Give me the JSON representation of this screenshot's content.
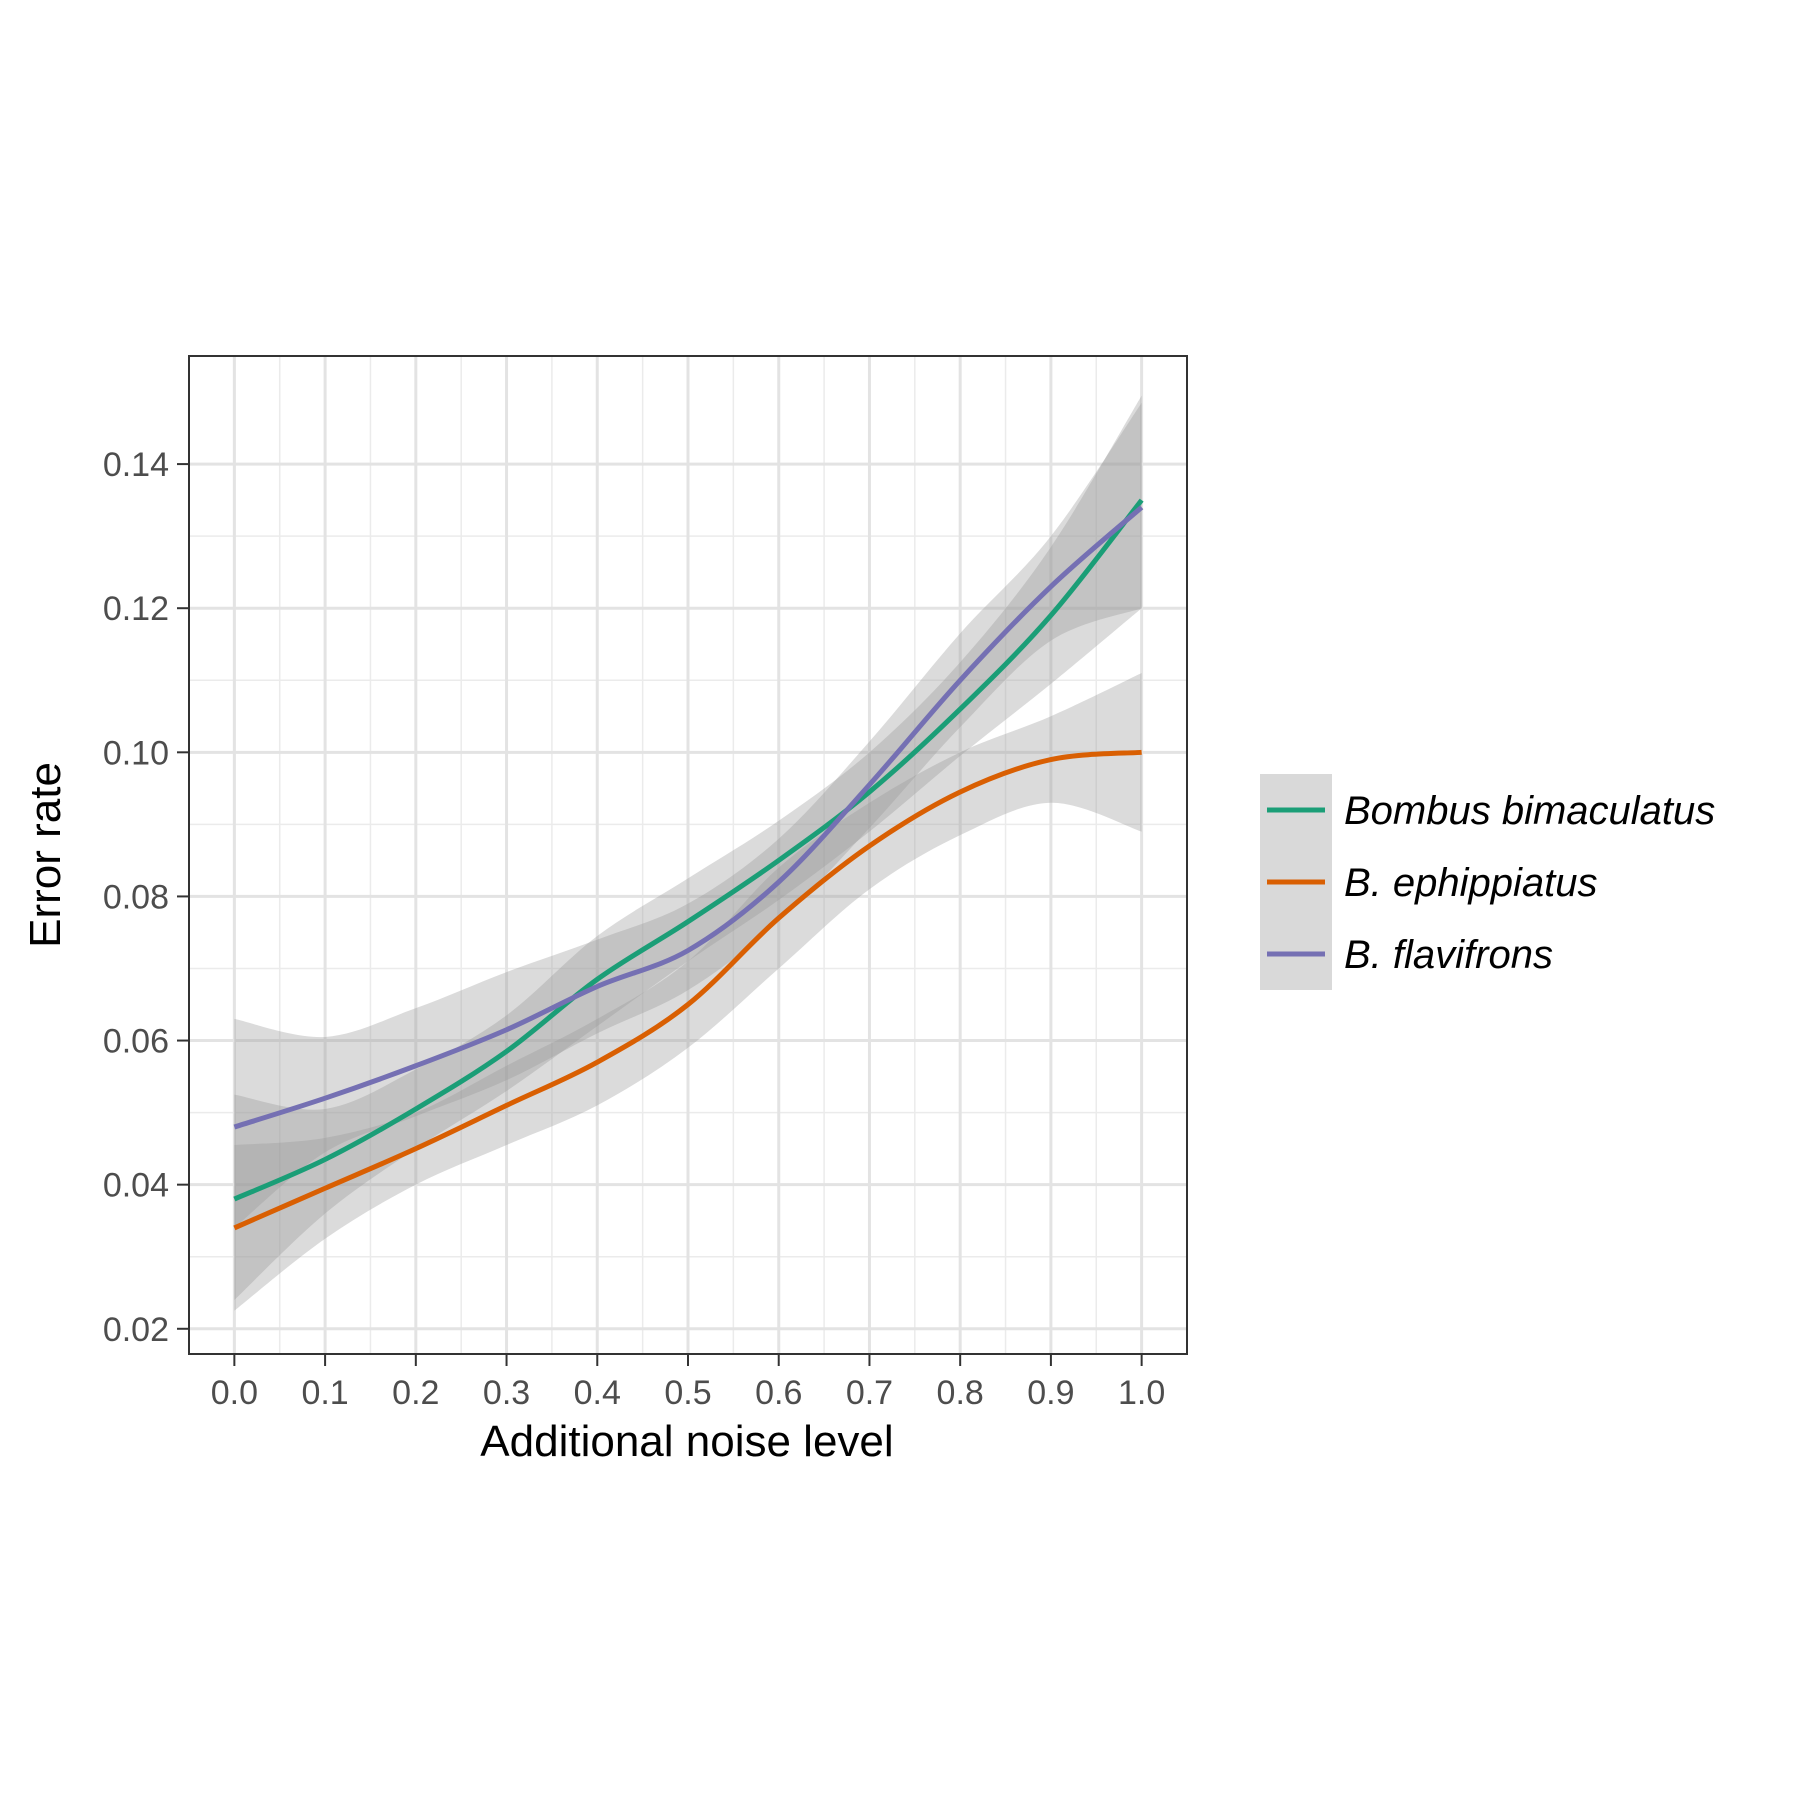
{
  "chart_data": {
    "type": "line",
    "xlabel": "Additional noise level",
    "ylabel": "Error rate",
    "xlim": [
      -0.05,
      1.05
    ],
    "ylim": [
      0.0165,
      0.155
    ],
    "x_ticks": [
      {
        "value": 0.0,
        "label": "0.0"
      },
      {
        "value": 0.1,
        "label": "0.1"
      },
      {
        "value": 0.2,
        "label": "0.2"
      },
      {
        "value": 0.3,
        "label": "0.3"
      },
      {
        "value": 0.4,
        "label": "0.4"
      },
      {
        "value": 0.5,
        "label": "0.5"
      },
      {
        "value": 0.6,
        "label": "0.6"
      },
      {
        "value": 0.7,
        "label": "0.7"
      },
      {
        "value": 0.8,
        "label": "0.8"
      },
      {
        "value": 0.9,
        "label": "0.9"
      },
      {
        "value": 1.0,
        "label": "1.0"
      }
    ],
    "y_ticks": [
      {
        "value": 0.02,
        "label": "0.02"
      },
      {
        "value": 0.04,
        "label": "0.04"
      },
      {
        "value": 0.06,
        "label": "0.06"
      },
      {
        "value": 0.08,
        "label": "0.08"
      },
      {
        "value": 0.1,
        "label": "0.10"
      },
      {
        "value": 0.12,
        "label": "0.12"
      },
      {
        "value": 0.14,
        "label": "0.14"
      }
    ],
    "grid": true,
    "legend_position": "right",
    "series": [
      {
        "name": "Bombus bimaculatus",
        "color": "#1b9e77",
        "x": [
          0.0,
          0.1,
          0.2,
          0.3,
          0.4,
          0.5,
          0.6,
          0.7,
          0.8,
          0.9,
          1.0
        ],
        "y": [
          0.038,
          0.0435,
          0.0505,
          0.0585,
          0.0685,
          0.0765,
          0.085,
          0.0945,
          0.106,
          0.119,
          0.135
        ],
        "lower": [
          0.024,
          0.036,
          0.045,
          0.053,
          0.062,
          0.071,
          0.0795,
          0.089,
          0.0995,
          0.1095,
          0.12
        ],
        "upper": [
          0.0525,
          0.0505,
          0.056,
          0.0635,
          0.0745,
          0.0825,
          0.0905,
          0.1,
          0.1125,
          0.1285,
          0.1495
        ]
      },
      {
        "name": "B. ephippiatus",
        "color": "#d95f02",
        "x": [
          0.0,
          0.1,
          0.2,
          0.3,
          0.4,
          0.5,
          0.6,
          0.7,
          0.8,
          0.9,
          1.0
        ],
        "y": [
          0.034,
          0.0395,
          0.045,
          0.051,
          0.057,
          0.065,
          0.077,
          0.087,
          0.0945,
          0.099,
          0.1
        ],
        "lower": [
          0.0225,
          0.0325,
          0.04,
          0.0455,
          0.051,
          0.059,
          0.07,
          0.081,
          0.0885,
          0.093,
          0.089
        ],
        "upper": [
          0.0455,
          0.0465,
          0.05,
          0.0565,
          0.063,
          0.071,
          0.084,
          0.093,
          0.1,
          0.105,
          0.111
        ]
      },
      {
        "name": "B. flavifrons",
        "color": "#7570b3",
        "x": [
          0.0,
          0.1,
          0.2,
          0.3,
          0.4,
          0.5,
          0.6,
          0.7,
          0.8,
          0.9,
          1.0
        ],
        "y": [
          0.048,
          0.052,
          0.0565,
          0.0615,
          0.0675,
          0.0725,
          0.082,
          0.0955,
          0.11,
          0.123,
          0.134
        ],
        "lower": [
          0.034,
          0.0445,
          0.0495,
          0.0545,
          0.061,
          0.067,
          0.0765,
          0.0895,
          0.1035,
          0.1155,
          0.12
        ],
        "upper": [
          0.063,
          0.0605,
          0.0645,
          0.0695,
          0.074,
          0.079,
          0.088,
          0.1015,
          0.1165,
          0.13,
          0.1485
        ]
      }
    ]
  }
}
